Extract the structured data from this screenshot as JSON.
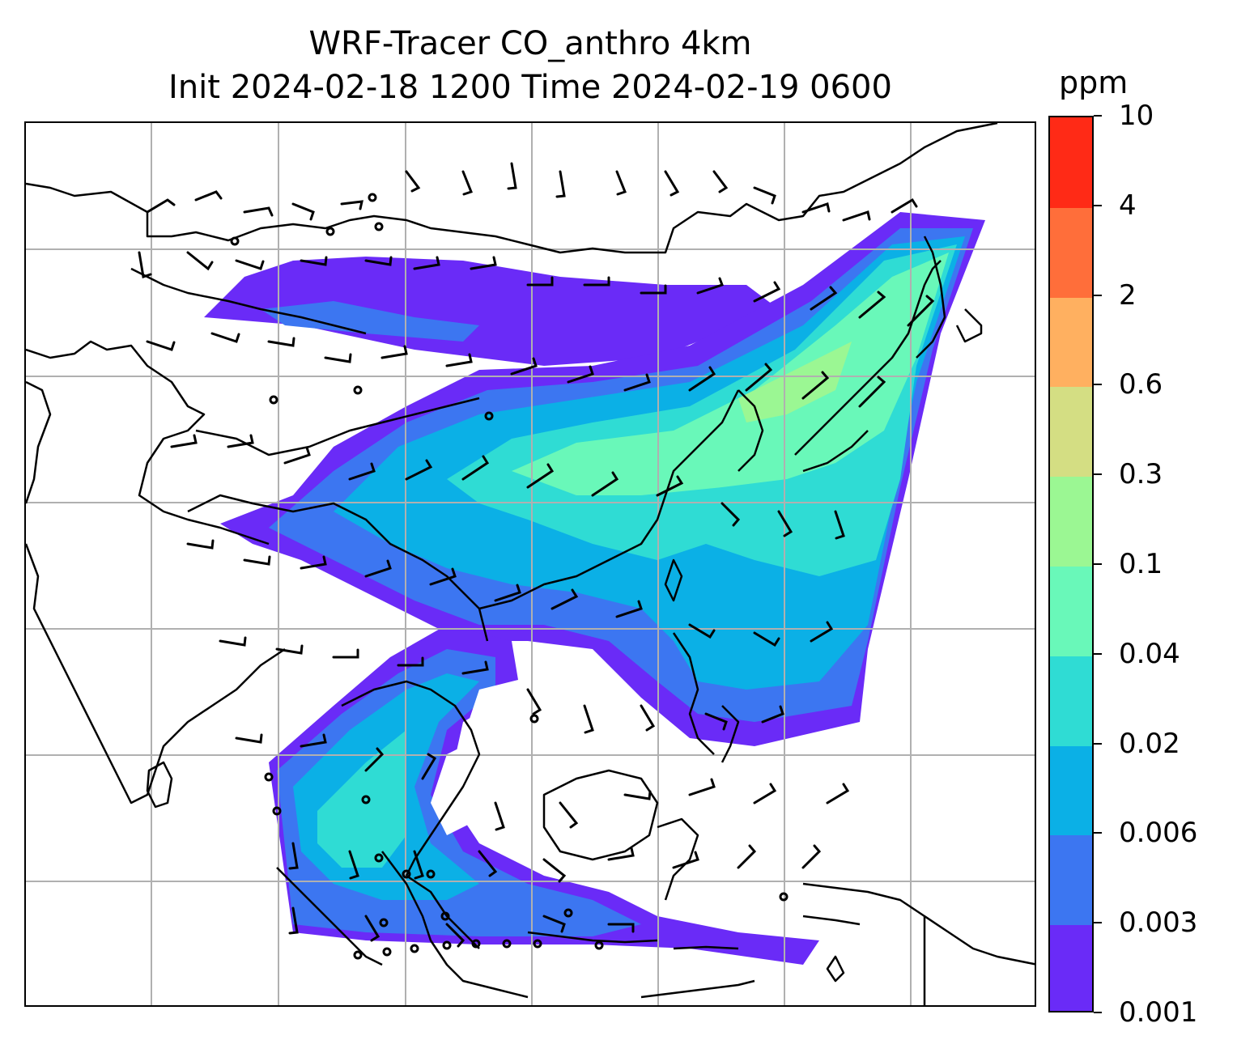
{
  "title_line1": "WRF-Tracer CO_anthro 4km",
  "title_line2": "Init 2024-02-18 1200 Time 2024-02-19 0600",
  "colorbar": {
    "unit": "ppm",
    "levels": [
      "0.001",
      "0.003",
      "0.006",
      "0.02",
      "0.04",
      "0.1",
      "0.3",
      "0.6",
      "2",
      "4",
      "10"
    ],
    "colors": [
      "#6a2bf7",
      "#3c76f1",
      "#0bb0e6",
      "#2fdcd4",
      "#69f8b9",
      "#9bf793",
      "#d4de83",
      "#ffb060",
      "#ff6e3a",
      "#ff2a16"
    ]
  },
  "map": {
    "gridlines": true,
    "grid_color": "#b0b0b0",
    "coastline_color": "#000000",
    "wind_barbs": true
  }
}
